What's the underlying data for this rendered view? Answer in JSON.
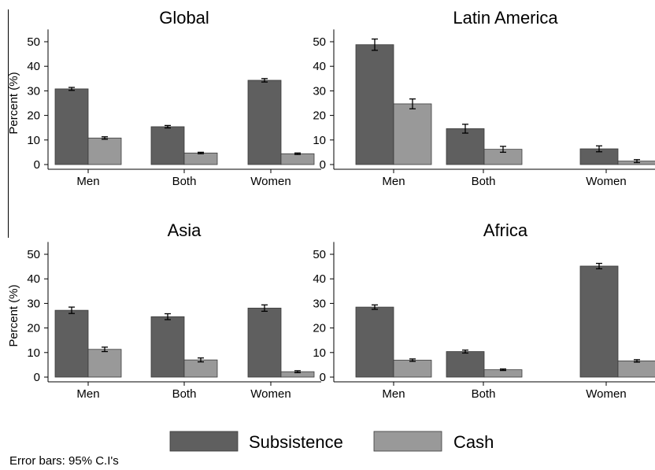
{
  "chart_data": [
    {
      "type": "bar",
      "title": "Global",
      "ylabel": "Percent (%)",
      "ylim": [
        0,
        55
      ],
      "yticks": [
        0,
        10,
        20,
        30,
        40,
        50
      ],
      "categories": [
        "Men",
        "Both",
        "Women"
      ],
      "series": [
        {
          "name": "Subsistence",
          "values": [
            30.8,
            15.4,
            34.3
          ],
          "ci": [
            0.6,
            0.5,
            0.7
          ]
        },
        {
          "name": "Cash",
          "values": [
            10.8,
            4.7,
            4.4
          ],
          "ci": [
            0.5,
            0.3,
            0.3
          ]
        }
      ]
    },
    {
      "type": "bar",
      "title": "Latin America",
      "ylabel": "",
      "ylim": [
        0,
        55
      ],
      "yticks": [
        0,
        10,
        20,
        30,
        40,
        50
      ],
      "categories": [
        "Men",
        "Both",
        "Women"
      ],
      "series": [
        {
          "name": "Subsistence",
          "values": [
            48.8,
            14.6,
            6.4
          ],
          "ci": [
            2.3,
            1.8,
            1.2
          ]
        },
        {
          "name": "Cash",
          "values": [
            24.7,
            6.2,
            1.4
          ],
          "ci": [
            2.0,
            1.2,
            0.6
          ]
        }
      ]
    },
    {
      "type": "bar",
      "title": "Asia",
      "ylabel": "Percent (%)",
      "ylim": [
        0,
        55
      ],
      "yticks": [
        0,
        10,
        20,
        30,
        40,
        50
      ],
      "categories": [
        "Men",
        "Both",
        "Women"
      ],
      "series": [
        {
          "name": "Subsistence",
          "values": [
            27.2,
            24.6,
            28.1
          ],
          "ci": [
            1.3,
            1.2,
            1.3
          ]
        },
        {
          "name": "Cash",
          "values": [
            11.3,
            7.0,
            2.2
          ],
          "ci": [
            0.9,
            0.8,
            0.4
          ]
        }
      ]
    },
    {
      "type": "bar",
      "title": "Africa",
      "ylabel": "",
      "ylim": [
        0,
        55
      ],
      "yticks": [
        0,
        10,
        20,
        30,
        40,
        50
      ],
      "categories": [
        "Men",
        "Both",
        "Women"
      ],
      "series": [
        {
          "name": "Subsistence",
          "values": [
            28.5,
            10.4,
            45.2
          ],
          "ci": [
            0.9,
            0.6,
            1.1
          ]
        },
        {
          "name": "Cash",
          "values": [
            6.9,
            3.0,
            6.6
          ],
          "ci": [
            0.5,
            0.3,
            0.5
          ]
        }
      ]
    }
  ],
  "legend": {
    "items": [
      {
        "label": "Subsistence",
        "color": "#5f5f5f"
      },
      {
        "label": "Cash",
        "color": "#999999"
      }
    ],
    "placement": "bottom"
  },
  "note": "Error bars: 95% C.I's",
  "colors": {
    "subsistence": "#5f5f5f",
    "cash": "#999999"
  }
}
